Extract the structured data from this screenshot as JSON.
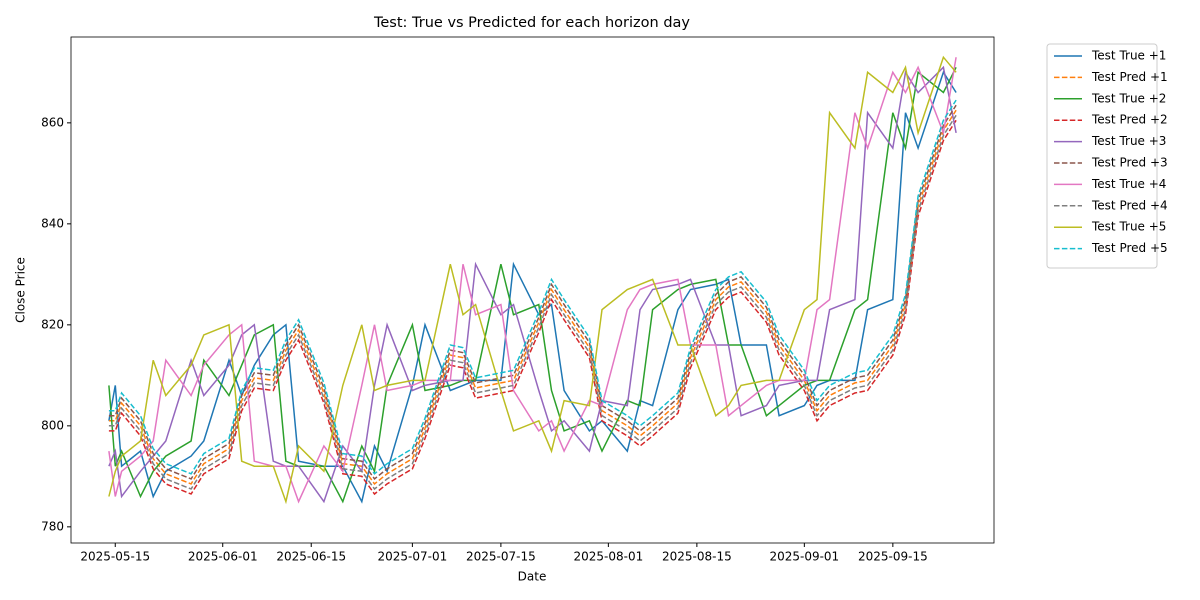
{
  "chart_data": {
    "type": "line",
    "title": "Test: True vs Predicted for each horizon day",
    "xlabel": "Date",
    "ylabel": "Close Price",
    "x": [
      "2025-05-14",
      "2025-05-15",
      "2025-05-16",
      "2025-05-19",
      "2025-05-21",
      "2025-05-23",
      "2025-05-27",
      "2025-05-29",
      "2025-06-02",
      "2025-06-04",
      "2025-06-06",
      "2025-06-09",
      "2025-06-11",
      "2025-06-13",
      "2025-06-17",
      "2025-06-20",
      "2025-06-23",
      "2025-06-25",
      "2025-06-27",
      "2025-07-01",
      "2025-07-03",
      "2025-07-07",
      "2025-07-09",
      "2025-07-11",
      "2025-07-15",
      "2025-07-17",
      "2025-07-21",
      "2025-07-23",
      "2025-07-25",
      "2025-07-29",
      "2025-07-31",
      "2025-08-04",
      "2025-08-06",
      "2025-08-08",
      "2025-08-12",
      "2025-08-14",
      "2025-08-18",
      "2025-08-20",
      "2025-08-22",
      "2025-08-26",
      "2025-08-28",
      "2025-09-01",
      "2025-09-03",
      "2025-09-05",
      "2025-09-09",
      "2025-09-11",
      "2025-09-15",
      "2025-09-17",
      "2025-09-19",
      "2025-09-23",
      "2025-09-25"
    ],
    "xlim": [
      "2025-05-08",
      "2025-10-01"
    ],
    "xticks": [
      "2025-05-15",
      "2025-06-01",
      "2025-06-15",
      "2025-07-01",
      "2025-07-15",
      "2025-08-01",
      "2025-08-15",
      "2025-09-01",
      "2025-09-15"
    ],
    "ylim": [
      776.8,
      877
    ],
    "yticks": [
      780,
      800,
      820,
      840,
      860
    ],
    "legend": "outside right",
    "series": [
      {
        "name": "Test True +1",
        "color": "#1f77b4",
        "dashed": false,
        "values": [
          801,
          808,
          792,
          795,
          786,
          791,
          794,
          797,
          813,
          806,
          812,
          818,
          820,
          793,
          792,
          792,
          785,
          796,
          791,
          808,
          820,
          807,
          808,
          809,
          809,
          832,
          822,
          824,
          807,
          799,
          801,
          795,
          805,
          804,
          823,
          827,
          828,
          829,
          816,
          816,
          802,
          804,
          808,
          809,
          809,
          823,
          825,
          862,
          855,
          870,
          866
        ]
      },
      {
        "name": "Test Pred +1",
        "color": "#ff7f0e",
        "dashed": true,
        "values": [
          801,
          801,
          804.5,
          800,
          793.5,
          790.5,
          788.5,
          792.5,
          795.5,
          805,
          809.5,
          809,
          815,
          819,
          806.5,
          792.5,
          792,
          788.5,
          790.5,
          793.5,
          799.5,
          814,
          813.5,
          807.5,
          808.5,
          809,
          820.5,
          827,
          823,
          815.5,
          803,
          800,
          798,
          800,
          804.5,
          813.5,
          825,
          827.5,
          828.5,
          822.5,
          816,
          809,
          803,
          806,
          808.5,
          809,
          816,
          824,
          843.5,
          858.5,
          862.5
        ]
      },
      {
        "name": "Test True +2",
        "color": "#2ca02c",
        "dashed": false,
        "values": [
          808,
          792,
          795,
          786,
          791,
          794,
          797,
          813,
          806,
          812,
          818,
          820,
          793,
          792,
          792,
          785,
          796,
          791,
          808,
          820,
          807,
          808,
          809,
          809,
          832,
          822,
          824,
          807,
          799,
          801,
          795,
          805,
          804,
          823,
          827,
          828,
          829,
          816,
          816,
          802,
          804,
          808,
          809,
          809,
          823,
          825,
          862,
          855,
          870,
          866,
          871
        ]
      },
      {
        "name": "Test Pred +2",
        "color": "#d62728",
        "dashed": true,
        "values": [
          799,
          799,
          802.5,
          798,
          791.5,
          788.5,
          786.5,
          790.5,
          793.5,
          803,
          807.5,
          807,
          813,
          817,
          804.5,
          790.5,
          790,
          786.5,
          788.5,
          791.5,
          797.5,
          812,
          811.5,
          805.5,
          806.5,
          807,
          818.5,
          825,
          821,
          813.5,
          801,
          798,
          796,
          798,
          802.5,
          811.5,
          823,
          825.5,
          826.5,
          820.5,
          814,
          807,
          801,
          804,
          806.5,
          807,
          814,
          822,
          841.5,
          856.5,
          860.5
        ]
      },
      {
        "name": "Test True +3",
        "color": "#9467bd",
        "dashed": false,
        "values": [
          792,
          795,
          786,
          791,
          794,
          797,
          813,
          806,
          812,
          818,
          820,
          793,
          792,
          792,
          785,
          796,
          791,
          808,
          820,
          807,
          808,
          809,
          809,
          832,
          822,
          824,
          807,
          799,
          801,
          795,
          805,
          804,
          823,
          827,
          828,
          829,
          816,
          816,
          802,
          804,
          808,
          809,
          809,
          823,
          825,
          862,
          855,
          870,
          866,
          871,
          858
        ]
      },
      {
        "name": "Test Pred +3",
        "color": "#8c564b",
        "dashed": true,
        "values": [
          802,
          802,
          805.5,
          801,
          794.5,
          791.5,
          789.5,
          793.5,
          796.5,
          806,
          810.5,
          810,
          816,
          820,
          807.5,
          793.5,
          793,
          789.5,
          791.5,
          794.5,
          800.5,
          815,
          814.5,
          808.5,
          809.5,
          810,
          821.5,
          828,
          824,
          816.5,
          804,
          801,
          799,
          801,
          805.5,
          814.5,
          826,
          828.5,
          829.5,
          823.5,
          817,
          810,
          804,
          807,
          809.5,
          810,
          817,
          825,
          844.5,
          859.5,
          863.5
        ]
      },
      {
        "name": "Test True +4",
        "color": "#e377c2",
        "dashed": false,
        "values": [
          795,
          786,
          791,
          794,
          797,
          813,
          806,
          812,
          818,
          820,
          793,
          792,
          792,
          785,
          796,
          791,
          808,
          820,
          807,
          808,
          809,
          809,
          832,
          822,
          824,
          807,
          799,
          801,
          795,
          805,
          804,
          823,
          827,
          828,
          829,
          816,
          816,
          802,
          804,
          808,
          809,
          809,
          823,
          825,
          862,
          855,
          870,
          866,
          871,
          858,
          873
        ]
      },
      {
        "name": "Test Pred +4",
        "color": "#7f7f7f",
        "dashed": true,
        "values": [
          800,
          800,
          803.5,
          799,
          792.5,
          789.5,
          787.5,
          791.5,
          794.5,
          804,
          808.5,
          808,
          814,
          818,
          805.5,
          791.5,
          791,
          787.5,
          789.5,
          792.5,
          798.5,
          813,
          812.5,
          806.5,
          807.5,
          808,
          819.5,
          826,
          822,
          814.5,
          802,
          799,
          797,
          799,
          803.5,
          812.5,
          824,
          826.5,
          827.5,
          821.5,
          815,
          808,
          802,
          805,
          807.5,
          808,
          815,
          823,
          842.5,
          857.5,
          861.5
        ]
      },
      {
        "name": "Test True +5",
        "color": "#bcbd22",
        "dashed": false,
        "values": [
          786,
          791,
          794,
          797,
          813,
          806,
          812,
          818,
          820,
          793,
          792,
          792,
          785,
          796,
          791,
          808,
          820,
          807,
          808,
          809,
          809,
          832,
          822,
          824,
          807,
          799,
          801,
          795,
          805,
          804,
          823,
          827,
          828,
          829,
          816,
          816,
          802,
          804,
          808,
          809,
          809,
          823,
          825,
          862,
          855,
          870,
          866,
          871,
          858,
          873,
          870
        ]
      },
      {
        "name": "Test Pred +5",
        "color": "#17becf",
        "dashed": true,
        "values": [
          803,
          803,
          806.5,
          802,
          795.5,
          792.5,
          790.5,
          794.5,
          797.5,
          807,
          811.5,
          811,
          817,
          821,
          808.5,
          794.5,
          794,
          790.5,
          792.5,
          795.5,
          801.5,
          816,
          815.5,
          809.5,
          810.5,
          811,
          822.5,
          829,
          825,
          817.5,
          805,
          802,
          800,
          802,
          806.5,
          815.5,
          827,
          829.5,
          830.5,
          824.5,
          818,
          811,
          805,
          808,
          810.5,
          811,
          818,
          826,
          845.5,
          860.5,
          864.5
        ]
      }
    ]
  }
}
